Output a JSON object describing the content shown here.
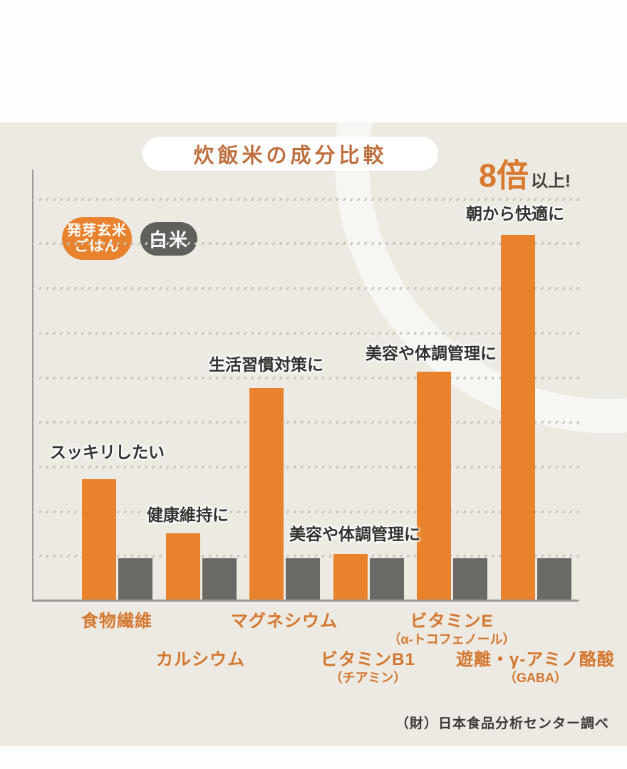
{
  "title": "炊飯米の成分比較",
  "callout": {
    "multiplier": "8倍",
    "suffix": "以上!"
  },
  "legend": {
    "germinated_brown_rice": {
      "line1": "発芽玄米",
      "line2": "ごはん",
      "color": "#e8822c"
    },
    "white_rice": {
      "label": "白米",
      "color": "#615f5b"
    }
  },
  "chart_data": {
    "type": "bar",
    "title": "炊飯米の成分比較",
    "xlabel": "",
    "ylabel": "",
    "ylim": [
      0,
      10.4
    ],
    "grid": true,
    "legend_position": "top-left",
    "categories": [
      {
        "label": "食物繊維",
        "sub": "",
        "annotation": "スッキリしたい"
      },
      {
        "label": "カルシウム",
        "sub": "",
        "annotation": "健康維持に"
      },
      {
        "label": "マグネシウム",
        "sub": "",
        "annotation": "生活習慣対策に"
      },
      {
        "label": "ビタミンB1",
        "sub": "（チアミン）",
        "annotation": "美容や体調管理に"
      },
      {
        "label": "ビタミンE",
        "sub": "（α-トコフェノール）",
        "annotation": "美容や体調管理に"
      },
      {
        "label": "遊離・γ-アミノ酪酸",
        "sub": "（GABA）",
        "annotation": "朝から快適に"
      }
    ],
    "series": [
      {
        "name": "発芽玄米ごはん",
        "color": "#e8822c",
        "values": [
          2.9,
          1.6,
          5.1,
          1.1,
          5.5,
          8.8
        ]
      },
      {
        "name": "白米",
        "color": "#6b6966",
        "values": [
          1,
          1,
          1,
          1,
          1,
          1
        ]
      }
    ],
    "highlight": "遊離・γ-アミノ酪酸（GABA）は8倍以上"
  },
  "source": "（財）日本食品分析センター調べ"
}
